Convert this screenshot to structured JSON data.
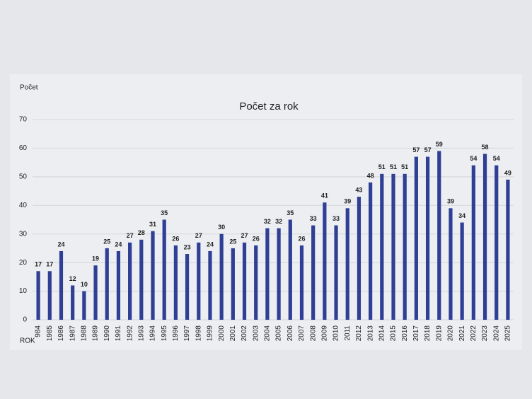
{
  "chart_data": {
    "type": "bar",
    "title": "Počet za rok",
    "y_label": "Počet",
    "x_label": "ROK",
    "categories": [
      "984",
      "1985",
      "1986",
      "1987",
      "1988",
      "1989",
      "1990",
      "1991",
      "1992",
      "1993",
      "1994",
      "1995",
      "1996",
      "1997",
      "1998",
      "1999",
      "2000",
      "2001",
      "2002",
      "2003",
      "2004",
      "2005",
      "2006",
      "2007",
      "2008",
      "2009",
      "2010",
      "2011",
      "2012",
      "2013",
      "2014",
      "2015",
      "2016",
      "2017",
      "2018",
      "2019",
      "2020",
      "2021",
      "2022",
      "2023",
      "2024",
      "2025"
    ],
    "values": [
      17,
      17,
      24,
      12,
      10,
      19,
      25,
      24,
      27,
      28,
      31,
      35,
      26,
      23,
      27,
      24,
      30,
      25,
      27,
      26,
      32,
      32,
      35,
      26,
      33,
      41,
      33,
      39,
      43,
      48,
      51,
      51,
      51,
      57,
      57,
      59,
      39,
      34,
      54,
      58,
      54,
      49
    ],
    "color": "#2e3f95",
    "ylim": [
      0,
      70
    ],
    "yticks": [
      0,
      10,
      20,
      30,
      40,
      50,
      60,
      70
    ],
    "grid": true,
    "data_labels": true
  }
}
